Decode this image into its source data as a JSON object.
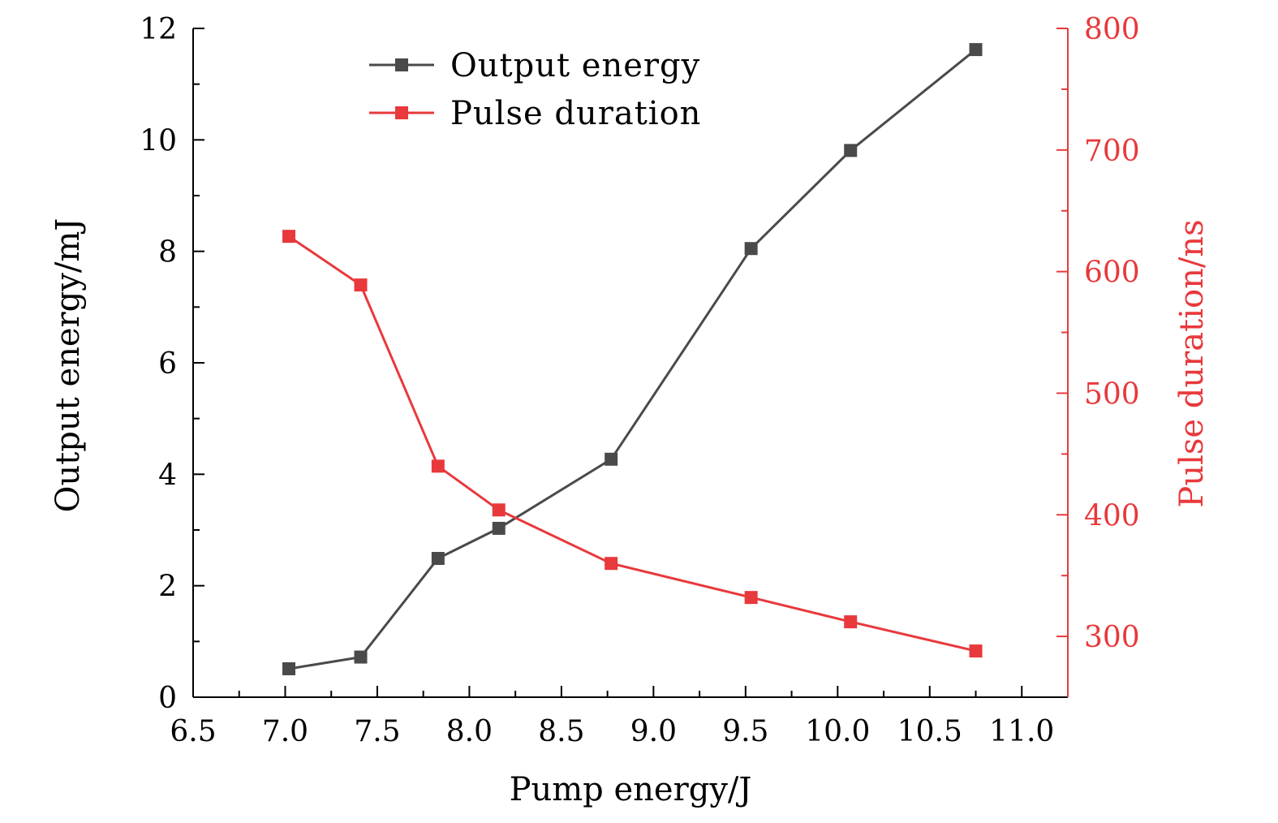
{
  "chart_data": {
    "type": "line",
    "title": "",
    "xlabel": "Pump energy/J",
    "ylabel_left": "Output energy/mJ",
    "ylabel_right": "Pulse duration/ns",
    "xlim": [
      6.5,
      11.25
    ],
    "ylim_left": [
      0,
      12
    ],
    "ylim_right": [
      250,
      800
    ],
    "x_ticks": [
      "6.5",
      "7.0",
      "7.5",
      "8.0",
      "8.5",
      "9.0",
      "9.5",
      "10.0",
      "10.5",
      "11.0"
    ],
    "y_left_ticks": [
      "0",
      "2",
      "4",
      "6",
      "8",
      "10",
      "12"
    ],
    "y_right_ticks": [
      "300",
      "400",
      "500",
      "600",
      "700",
      "800"
    ],
    "grid": false,
    "legend_position": "top-center",
    "colors": {
      "output": "#4a4a4a",
      "pulse": "#e8393c",
      "axis": "#000000"
    },
    "series": [
      {
        "name": "Output energy",
        "axis": "left",
        "x": [
          7.02,
          7.41,
          7.83,
          8.16,
          8.77,
          9.53,
          10.07,
          10.75
        ],
        "values": [
          0.51,
          0.72,
          2.49,
          3.03,
          4.27,
          8.05,
          9.81,
          11.62
        ]
      },
      {
        "name": "Pulse duration",
        "axis": "right",
        "x": [
          7.02,
          7.41,
          7.83,
          8.16,
          8.77,
          9.53,
          10.07,
          10.75
        ],
        "values": [
          629,
          589,
          440,
          404,
          360,
          332,
          312,
          288
        ]
      }
    ]
  }
}
